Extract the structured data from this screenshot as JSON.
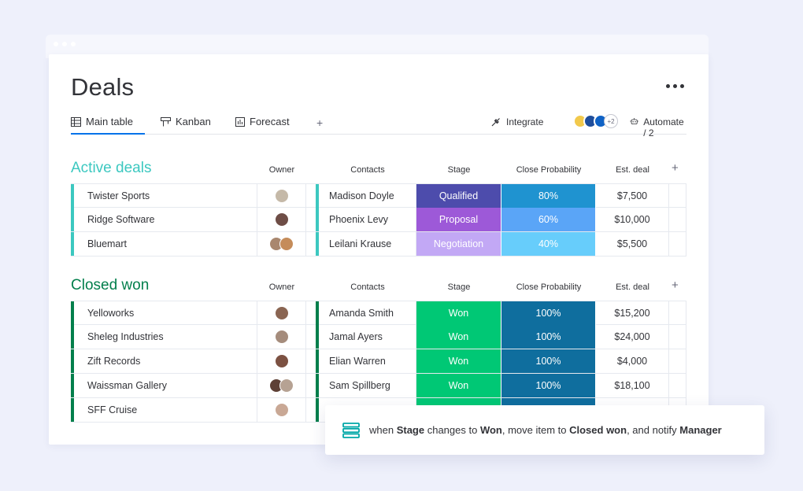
{
  "board": {
    "title": "Deals"
  },
  "tabs": [
    {
      "label": "Main table",
      "icon": "table-icon",
      "active": true
    },
    {
      "label": "Kanban",
      "icon": "kanban-icon",
      "active": false
    },
    {
      "label": "Forecast",
      "icon": "chart-icon",
      "active": false
    }
  ],
  "toolbar": {
    "add_view": "+",
    "integrate_label": "Integrate",
    "integrations_more": "+2",
    "automate_label": "Automate / 2"
  },
  "columns": {
    "owner": "Owner",
    "contacts": "Contacts",
    "stage": "Stage",
    "probability": "Close Probability",
    "deal": "Est. deal",
    "add": "+"
  },
  "groups": [
    {
      "title": "Active deals",
      "color": "#3cc8c0",
      "rows": [
        {
          "name": "Twister Sports",
          "avatars": [
            {
              "initials": "",
              "color": "#c5b9a8"
            }
          ],
          "contact": "Madison Doyle",
          "stage": "Qualified",
          "stage_color": "#4d4cac",
          "prob": "80%",
          "prob_color": "#1f93d0",
          "deal": "$7,500"
        },
        {
          "name": "Ridge Software",
          "avatars": [
            {
              "initials": "",
              "color": "#6e4d46"
            }
          ],
          "contact": "Phoenix Levy",
          "stage": "Proposal",
          "stage_color": "#9d59d8",
          "prob": "60%",
          "prob_color": "#5aa5f7",
          "deal": "$10,000"
        },
        {
          "name": "Bluemart",
          "avatars": [
            {
              "initials": "",
              "color": "#a9876f"
            },
            {
              "initials": "",
              "color": "#c58c5a"
            }
          ],
          "contact": "Leilani Krause",
          "stage": "Negotiation",
          "stage_color": "#c2a8f5",
          "prob": "40%",
          "prob_color": "#67cdfb",
          "deal": "$5,500"
        }
      ]
    },
    {
      "title": "Closed won",
      "color": "#037f4c",
      "rows": [
        {
          "name": "Yelloworks",
          "avatars": [
            {
              "initials": "",
              "color": "#8a6552"
            }
          ],
          "contact": "Amanda Smith",
          "stage": "Won",
          "stage_color": "#00c875",
          "prob": "100%",
          "prob_color": "#0f6e9e",
          "deal": "$15,200"
        },
        {
          "name": "Sheleg Industries",
          "avatars": [
            {
              "initials": "",
              "color": "#a58c7c"
            }
          ],
          "contact": "Jamal Ayers",
          "stage": "Won",
          "stage_color": "#00c875",
          "prob": "100%",
          "prob_color": "#0f6e9e",
          "deal": "$24,000"
        },
        {
          "name": "Zift Records",
          "avatars": [
            {
              "initials": "",
              "color": "#7c5142"
            }
          ],
          "contact": "Elian Warren",
          "stage": "Won",
          "stage_color": "#00c875",
          "prob": "100%",
          "prob_color": "#0f6e9e",
          "deal": "$4,000"
        },
        {
          "name": "Waissman Gallery",
          "avatars": [
            {
              "initials": "",
              "color": "#5e4036"
            },
            {
              "initials": "",
              "color": "#b6a293"
            }
          ],
          "contact": "Sam Spillberg",
          "stage": "Won",
          "stage_color": "#00c875",
          "prob": "100%",
          "prob_color": "#0f6e9e",
          "deal": "$18,100"
        },
        {
          "name": "SFF Cruise",
          "avatars": [
            {
              "initials": "",
              "color": "#c9a895"
            }
          ],
          "contact": "",
          "stage": "",
          "stage_color": "#00c875",
          "prob": "",
          "prob_color": "#0f6e9e",
          "deal": ""
        }
      ]
    }
  ],
  "automation": {
    "t1": "when ",
    "b1": "Stage",
    "t2": " changes to ",
    "b2": "Won",
    "t3": ", move item to ",
    "b3": "Closed won",
    "t4": ", and notify ",
    "b4": "Manager"
  }
}
